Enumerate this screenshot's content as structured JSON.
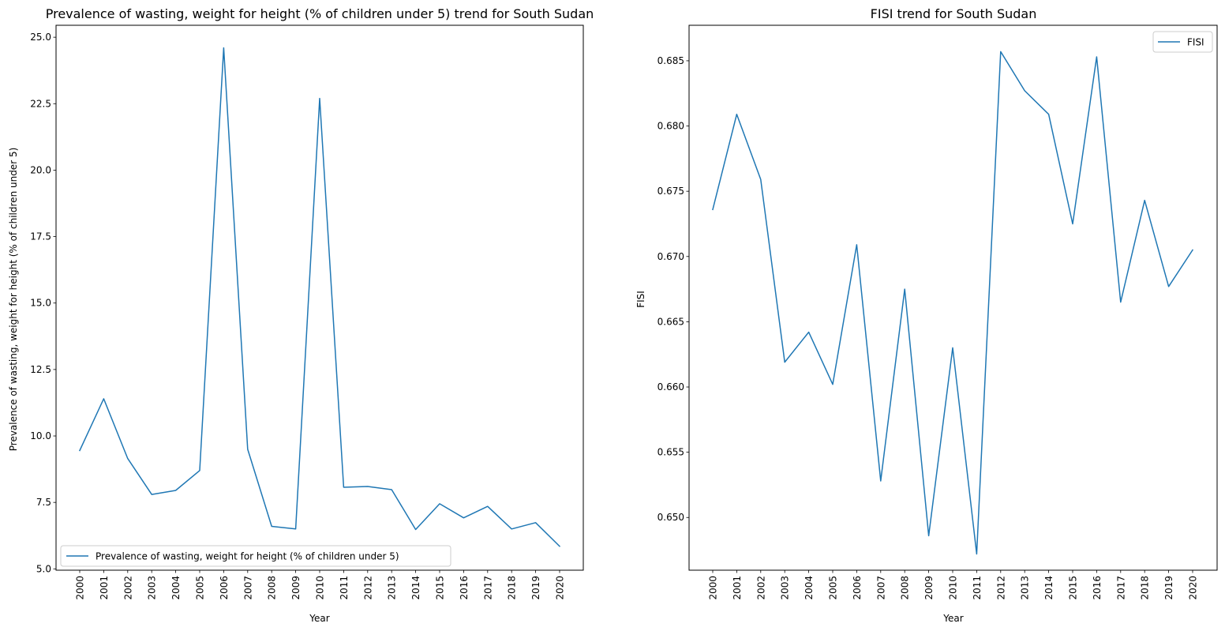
{
  "chart_data": [
    {
      "type": "line",
      "title": "Prevalence of wasting, weight for height (% of children under 5) trend for South Sudan",
      "xlabel": "Year",
      "ylabel": "Prevalence of wasting, weight for height (% of children under 5)",
      "x": [
        "2000",
        "2001",
        "2002",
        "2003",
        "2004",
        "2005",
        "2006",
        "2007",
        "2008",
        "2009",
        "2010",
        "2011",
        "2012",
        "2013",
        "2014",
        "2015",
        "2016",
        "2017",
        "2018",
        "2019",
        "2020"
      ],
      "yticks": [
        5.0,
        7.5,
        10.0,
        12.5,
        15.0,
        17.5,
        20.0,
        22.5,
        25.0
      ],
      "ytick_labels": [
        "5.0",
        "7.5",
        "10.0",
        "12.5",
        "15.0",
        "17.5",
        "20.0",
        "22.5",
        "25.0"
      ],
      "ylim": [
        4.95,
        25.45
      ],
      "grid": false,
      "legend": "lower-left",
      "color": "#1f77b4",
      "series": [
        {
          "name": "Prevalence of wasting, weight for height (% of children under 5)",
          "values": [
            9.45,
            11.4,
            9.15,
            7.8,
            7.95,
            8.7,
            24.6,
            9.5,
            6.6,
            6.5,
            22.7,
            8.07,
            8.1,
            7.98,
            6.48,
            7.45,
            6.92,
            7.35,
            6.5,
            6.74,
            5.85
          ]
        }
      ]
    },
    {
      "type": "line",
      "title": "FISI trend for South Sudan",
      "xlabel": "Year",
      "ylabel": "FISI",
      "x": [
        "2000",
        "2001",
        "2002",
        "2003",
        "2004",
        "2005",
        "2006",
        "2007",
        "2008",
        "2009",
        "2010",
        "2011",
        "2012",
        "2013",
        "2014",
        "2015",
        "2016",
        "2017",
        "2018",
        "2019",
        "2020"
      ],
      "yticks": [
        0.65,
        0.655,
        0.66,
        0.665,
        0.67,
        0.675,
        0.68,
        0.685
      ],
      "ytick_labels": [
        "0.650",
        "0.655",
        "0.660",
        "0.665",
        "0.670",
        "0.675",
        "0.680",
        "0.685"
      ],
      "ylim": [
        0.64596,
        0.68772
      ],
      "grid": false,
      "legend": "top-right",
      "color": "#1f77b4",
      "series": [
        {
          "name": "FISI",
          "values": [
            0.6736,
            0.6809,
            0.6759,
            0.6619,
            0.6642,
            0.6602,
            0.6709,
            0.6528,
            0.6675,
            0.6486,
            0.663,
            0.6472,
            0.6857,
            0.6827,
            0.6809,
            0.6725,
            0.6853,
            0.6665,
            0.6743,
            0.6677,
            0.6705
          ]
        }
      ]
    }
  ]
}
